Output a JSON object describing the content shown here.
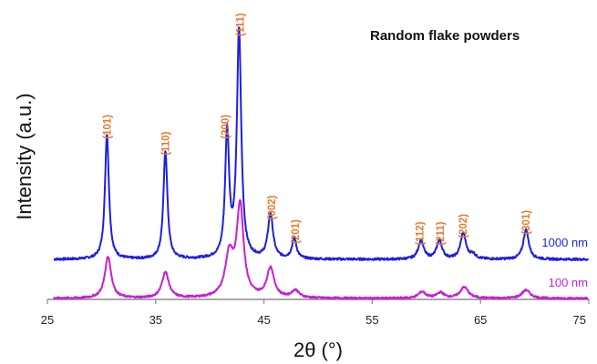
{
  "chart_data": {
    "type": "line",
    "title": "Random flake powders",
    "xlabel": "2θ (°)",
    "ylabel": "Intensity (a.u.)",
    "xlim": [
      25,
      75
    ],
    "xticks": [
      25,
      35,
      45,
      55,
      65,
      75
    ],
    "y_ticks_shown": false,
    "grid": false,
    "series": [
      {
        "name": "1000 nm",
        "color": "#1f1fe0",
        "baseline": 0.42,
        "noise": 0.012,
        "peaks": [
          {
            "x": 30.5,
            "h": 1.35,
            "w": 0.22
          },
          {
            "x": 35.9,
            "h": 1.17,
            "w": 0.22
          },
          {
            "x": 41.6,
            "h": 1.35,
            "w": 0.22
          },
          {
            "x": 42.7,
            "h": 2.45,
            "w": 0.24
          },
          {
            "x": 45.6,
            "h": 0.48,
            "w": 0.28
          },
          {
            "x": 47.8,
            "h": 0.22,
            "w": 0.25
          },
          {
            "x": 59.5,
            "h": 0.2,
            "w": 0.3
          },
          {
            "x": 61.2,
            "h": 0.2,
            "w": 0.3
          },
          {
            "x": 63.4,
            "h": 0.28,
            "w": 0.3
          },
          {
            "x": 64.3,
            "h": 0.05,
            "w": 0.3
          },
          {
            "x": 69.2,
            "h": 0.32,
            "w": 0.3
          }
        ]
      },
      {
        "name": "100 nm",
        "color": "#c61fd8",
        "baseline": 0.0,
        "noise": 0.01,
        "peaks": [
          {
            "x": 30.6,
            "h": 0.45,
            "w": 0.35
          },
          {
            "x": 35.9,
            "h": 0.28,
            "w": 0.38
          },
          {
            "x": 41.8,
            "h": 0.45,
            "w": 0.45
          },
          {
            "x": 42.8,
            "h": 0.98,
            "w": 0.38
          },
          {
            "x": 45.6,
            "h": 0.32,
            "w": 0.4
          },
          {
            "x": 47.9,
            "h": 0.08,
            "w": 0.4
          },
          {
            "x": 59.6,
            "h": 0.07,
            "w": 0.4
          },
          {
            "x": 61.3,
            "h": 0.06,
            "w": 0.4
          },
          {
            "x": 63.5,
            "h": 0.12,
            "w": 0.45
          },
          {
            "x": 69.2,
            "h": 0.09,
            "w": 0.45
          }
        ]
      }
    ],
    "peak_labels": [
      {
        "text": "(101)",
        "x": 30.5,
        "y": 1.85
      },
      {
        "text": "(110)",
        "x": 35.9,
        "y": 1.67
      },
      {
        "text": "(200)",
        "x": 41.4,
        "y": 1.85
      },
      {
        "text": "(111)",
        "x": 42.8,
        "y": 2.95
      },
      {
        "text": "(002)",
        "x": 45.7,
        "y": 0.98
      },
      {
        "text": "(201)",
        "x": 47.9,
        "y": 0.72
      },
      {
        "text": "(112)",
        "x": 59.4,
        "y": 0.7
      },
      {
        "text": "(211)",
        "x": 61.3,
        "y": 0.7
      },
      {
        "text": "(202)",
        "x": 63.4,
        "y": 0.78
      },
      {
        "text": "(301)",
        "x": 69.2,
        "y": 0.82
      }
    ]
  }
}
